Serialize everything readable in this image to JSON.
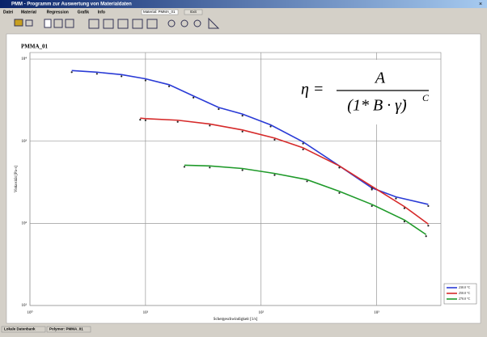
{
  "window": {
    "title": "PMM - Programm zur Auswertung von Materialdaten",
    "menu": [
      "Datei",
      "Material",
      "Regression",
      "Grafik",
      "Info"
    ],
    "material_label": "Material: PMMA_01",
    "exit": "Exit",
    "status": [
      "Lokale Datenbank",
      "Polymer: PMMA_01"
    ]
  },
  "chart_data": {
    "type": "line",
    "title": "PMMA_01",
    "formula": {
      "lhs": "η =",
      "numerator": "A",
      "denominator": "(1* B · γ̇)",
      "exponent": "C"
    },
    "x_label": "Schergeschwindigkeit [1/s]",
    "y_label": "Viskosität [Pa·s]",
    "log_x": true,
    "log_y": true,
    "grid": true,
    "legend": "lower right",
    "xlim": [
      1,
      3600
    ],
    "ylim": [
      10,
      12000
    ],
    "xticks": [
      {
        "value": 1,
        "label": "10⁰"
      },
      {
        "value": 10,
        "label": "10¹"
      },
      {
        "value": 100,
        "label": "10²"
      },
      {
        "value": 1000,
        "label": "10³"
      }
    ],
    "yticks": [
      {
        "value": 10,
        "label": "10¹"
      },
      {
        "value": 100,
        "label": "10²"
      },
      {
        "value": 1000,
        "label": "10³"
      },
      {
        "value": 10000,
        "label": "10⁴"
      }
    ],
    "series": [
      {
        "name": "230.0 °C",
        "color": "#2a3bd6",
        "x": [
          2.3,
          3.8,
          6.2,
          10,
          16,
          26,
          43,
          69,
          121,
          231,
          476,
          910,
          1470,
          2800
        ],
        "values": [
          7240,
          6920,
          6460,
          5750,
          4870,
          3550,
          2570,
          2140,
          1580,
          980,
          500,
          270,
          210,
          170
        ]
      },
      {
        "name": "250.0 °C",
        "color": "#d62a2a",
        "x": [
          9.0,
          10,
          19,
          36,
          69,
          131,
          231,
          476,
          910,
          1740,
          2800
        ],
        "values": [
          1910,
          1880,
          1800,
          1620,
          1370,
          1090,
          830,
          500,
          282,
          160,
          98
        ]
      },
      {
        "name": "270.0 °C",
        "color": "#1f9a2a",
        "x": [
          21.7,
          36,
          69,
          131,
          250,
          476,
          910,
          1740,
          2680
        ],
        "values": [
          510,
          500,
          465,
          405,
          340,
          245,
          170,
          110,
          73
        ]
      }
    ]
  }
}
